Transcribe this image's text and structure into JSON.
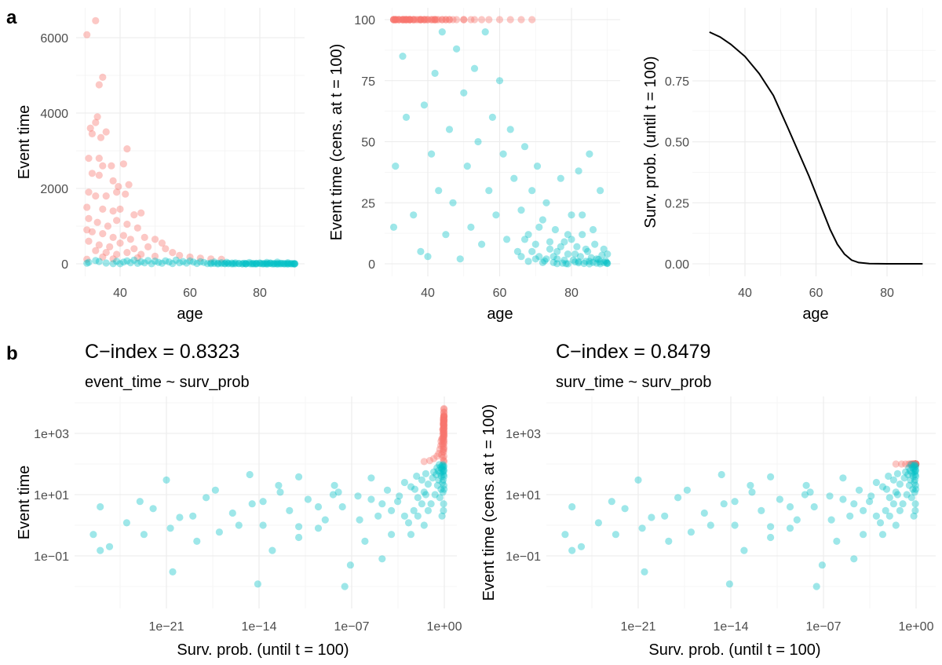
{
  "panel_tags": {
    "a": "a",
    "b": "b"
  },
  "chart_data": {
    "colors": {
      "censored_event_time_above_100": "#F8766D",
      "event_time_up_to_100": "#00BFC4",
      "curve": "#000000"
    },
    "observations": {
      "columns": [
        "age",
        "event_time",
        "surv_prob"
      ],
      "rows": [
        [
          30.5,
          6080,
          0.95
        ],
        [
          33,
          6450,
          0.94
        ],
        [
          34,
          4750,
          0.93
        ],
        [
          35,
          4950,
          0.93
        ],
        [
          33.5,
          3900,
          0.94
        ],
        [
          33,
          3750,
          0.94
        ],
        [
          31.5,
          3600,
          0.95
        ],
        [
          32,
          3450,
          0.94
        ],
        [
          36,
          3500,
          0.92
        ],
        [
          34.5,
          3350,
          0.93
        ],
        [
          42,
          3050,
          0.84
        ],
        [
          31,
          2800,
          0.95
        ],
        [
          34,
          2800,
          0.93
        ],
        [
          41,
          2650,
          0.85
        ],
        [
          35,
          2600,
          0.93
        ],
        [
          37.5,
          2600,
          0.9
        ],
        [
          32,
          2400,
          0.94
        ],
        [
          34,
          2350,
          0.93
        ],
        [
          38,
          2200,
          0.89
        ],
        [
          39.5,
          2050,
          0.87
        ],
        [
          42.5,
          2100,
          0.83
        ],
        [
          31,
          1900,
          0.95
        ],
        [
          33,
          1800,
          0.94
        ],
        [
          36,
          1800,
          0.92
        ],
        [
          39,
          1900,
          0.88
        ],
        [
          41.5,
          1850,
          0.85
        ],
        [
          30.5,
          1500,
          0.95
        ],
        [
          35,
          1450,
          0.93
        ],
        [
          38,
          1400,
          0.89
        ],
        [
          40,
          1450,
          0.86
        ],
        [
          44,
          1300,
          0.79
        ],
        [
          46,
          1350,
          0.76
        ],
        [
          31,
          1200,
          0.95
        ],
        [
          33.5,
          1100,
          0.94
        ],
        [
          36.5,
          1000,
          0.91
        ],
        [
          39,
          1150,
          0.88
        ],
        [
          42,
          1050,
          0.84
        ],
        [
          45,
          950,
          0.78
        ],
        [
          30.5,
          900,
          0.95
        ],
        [
          32,
          850,
          0.94
        ],
        [
          35,
          800,
          0.93
        ],
        [
          38,
          700,
          0.89
        ],
        [
          41,
          750,
          0.85
        ],
        [
          43,
          650,
          0.81
        ],
        [
          47,
          700,
          0.73
        ],
        [
          50,
          650,
          0.64
        ],
        [
          52,
          550,
          0.57
        ],
        [
          31,
          600,
          0.95
        ],
        [
          34,
          500,
          0.93
        ],
        [
          37,
          450,
          0.9
        ],
        [
          40,
          550,
          0.86
        ],
        [
          44,
          400,
          0.79
        ],
        [
          48,
          450,
          0.7
        ],
        [
          53,
          400,
          0.54
        ],
        [
          55,
          300,
          0.46
        ],
        [
          33,
          350,
          0.94
        ],
        [
          36,
          300,
          0.92
        ],
        [
          39,
          250,
          0.88
        ],
        [
          42,
          300,
          0.84
        ],
        [
          46,
          250,
          0.76
        ],
        [
          50,
          200,
          0.64
        ],
        [
          57,
          220,
          0.38
        ],
        [
          60,
          180,
          0.28
        ],
        [
          63,
          150,
          0.16
        ],
        [
          66,
          130,
          0.08
        ],
        [
          69,
          120,
          0.03
        ],
        [
          35,
          180,
          0.93
        ],
        [
          45,
          160,
          0.78
        ],
        [
          30.5,
          120,
          0.95
        ],
        [
          38,
          130,
          0.89
        ],
        [
          31,
          40,
          0.95
        ],
        [
          30.5,
          15,
          0.95
        ],
        [
          33,
          85,
          0.94
        ],
        [
          34,
          60,
          0.93
        ],
        [
          36,
          20,
          0.92
        ],
        [
          38,
          5,
          0.89
        ],
        [
          39,
          65,
          0.88
        ],
        [
          40,
          3,
          0.86
        ],
        [
          41,
          45,
          0.85
        ],
        [
          42,
          78,
          0.84
        ],
        [
          43,
          30,
          0.81
        ],
        [
          44,
          95,
          0.79
        ],
        [
          45,
          12,
          0.78
        ],
        [
          46,
          55,
          0.76
        ],
        [
          47,
          25,
          0.73
        ],
        [
          48,
          88,
          0.7
        ],
        [
          49,
          2,
          0.67
        ],
        [
          50,
          70,
          0.64
        ],
        [
          51,
          40,
          0.6
        ],
        [
          52,
          15,
          0.57
        ],
        [
          53,
          80,
          0.54
        ],
        [
          54,
          50,
          0.5
        ],
        [
          55,
          8,
          0.46
        ],
        [
          56,
          95,
          0.42
        ],
        [
          57,
          30,
          0.38
        ],
        [
          58,
          60,
          0.35
        ],
        [
          59,
          20,
          0.31
        ],
        [
          60,
          75,
          0.28
        ],
        [
          61,
          45,
          0.24
        ],
        [
          62,
          10,
          0.2
        ],
        [
          63,
          55,
          0.16
        ],
        [
          64,
          35,
          0.13
        ],
        [
          65,
          5,
          0.1
        ],
        [
          66,
          22,
          0.06
        ],
        [
          67,
          48,
          0.04
        ],
        [
          68,
          12,
          0.03
        ],
        [
          69,
          30,
          0.02
        ],
        [
          70,
          8,
          0.01
        ],
        [
          70.5,
          40,
          0.008
        ],
        [
          71,
          3,
          0.005
        ],
        [
          72,
          18,
          0.003
        ],
        [
          72.5,
          1.2,
          0.002
        ],
        [
          73,
          25,
          0.001
        ],
        [
          74,
          6,
          0.0003
        ],
        [
          75,
          0.5,
          0.0001
        ],
        [
          75.5,
          14,
          5e-05
        ],
        [
          76,
          2,
          1e-05
        ],
        [
          77,
          35,
          3e-06
        ],
        [
          77.5,
          0.3,
          1e-06
        ],
        [
          78,
          9,
          3e-07
        ],
        [
          78.5,
          0.05,
          8e-08
        ],
        [
          79,
          4,
          2e-08
        ],
        [
          80,
          20,
          5e-09
        ],
        [
          80.5,
          1.5,
          1e-09
        ],
        [
          81,
          0.8,
          3e-10
        ],
        [
          81.5,
          7,
          5e-11
        ],
        [
          82,
          0.4,
          1e-11
        ],
        [
          82.5,
          3,
          2e-12
        ],
        [
          83,
          12,
          4e-13
        ],
        [
          83.5,
          0.15,
          1e-13
        ],
        [
          84,
          1,
          2e-14
        ],
        [
          84.5,
          5,
          3e-15
        ],
        [
          85,
          0.012,
          8e-15
        ],
        [
          85.5,
          2.5,
          1e-16
        ],
        [
          86,
          0.6,
          1e-17
        ],
        [
          86.5,
          8,
          1e-18
        ],
        [
          87,
          0.3,
          2e-19
        ],
        [
          87.5,
          1.8,
          1e-20
        ],
        [
          88,
          0.03,
          3e-21
        ],
        [
          88.5,
          3.5,
          1e-22
        ],
        [
          89,
          0.5,
          2e-23
        ],
        [
          89.5,
          1.2,
          1e-24
        ],
        [
          90,
          4,
          1e-26
        ],
        [
          89.8,
          0.5,
          3e-27
        ],
        [
          89.9,
          0.15,
          1e-26
        ],
        [
          66,
          3,
          0.06
        ],
        [
          68,
          1,
          0.03
        ],
        [
          71,
          15,
          0.006
        ],
        [
          73,
          2,
          0.001
        ],
        [
          74,
          9,
          0.0004
        ],
        [
          76,
          5,
          2e-05
        ],
        [
          78,
          1.5,
          4e-07
        ],
        [
          79,
          12,
          1e-08
        ],
        [
          81,
          4,
          3e-10
        ],
        [
          82,
          0.9,
          1e-11
        ],
        [
          84,
          6,
          2e-14
        ],
        [
          85,
          1,
          3e-16
        ],
        [
          86,
          14,
          5e-18
        ],
        [
          87,
          2,
          1e-19
        ],
        [
          88,
          0.8,
          2e-21
        ],
        [
          89,
          6,
          1e-23
        ],
        [
          90,
          0.2,
          5e-26
        ],
        [
          83,
          20,
          3e-13
        ],
        [
          80,
          10,
          4e-09
        ],
        [
          77,
          7,
          3e-06
        ],
        [
          75,
          3,
          0.0001
        ],
        [
          72,
          0.5,
          0.003
        ],
        [
          70,
          2,
          0.01
        ],
        [
          69,
          5,
          0.02
        ],
        [
          67,
          10,
          0.04
        ],
        [
          85,
          45,
          2e-15
        ],
        [
          88,
          30,
          1e-21
        ],
        [
          82,
          38,
          1e-11
        ],
        [
          79,
          0.01,
          3e-08
        ],
        [
          76,
          0.08,
          2e-05
        ]
      ]
    },
    "panels": [
      {
        "id": "a1",
        "type": "scatter",
        "x": "age",
        "y": "event_time",
        "xlabel": "age",
        "ylabel": "Event time",
        "xlim": [
          30,
          90
        ],
        "ylim": [
          0,
          6450
        ],
        "xticks": [
          40,
          60,
          80
        ],
        "xtick_labels": [
          "40",
          "60",
          "80"
        ],
        "yticks": [
          0,
          2000,
          4000,
          6000
        ],
        "ytick_labels": [
          "0",
          "2000",
          "4000",
          "6000"
        ],
        "grid": true,
        "legend": "none"
      },
      {
        "id": "a2",
        "type": "scatter",
        "x": "age",
        "y": "event_time censored at 100",
        "xlabel": "age",
        "ylabel": "Event time (cens. at t = 100)",
        "xlim": [
          30,
          90
        ],
        "ylim": [
          0,
          100
        ],
        "xticks": [
          40,
          60,
          80
        ],
        "xtick_labels": [
          "40",
          "60",
          "80"
        ],
        "yticks": [
          0,
          25,
          50,
          75,
          100
        ],
        "ytick_labels": [
          "0",
          "25",
          "50",
          "75",
          "100"
        ],
        "grid": true,
        "legend": "none"
      },
      {
        "id": "a3",
        "type": "line",
        "xlabel": "age",
        "ylabel": "Surv. prob. (until t = 100)",
        "xlim": [
          30,
          90
        ],
        "ylim": [
          0,
          0.95
        ],
        "xticks": [
          40,
          60,
          80
        ],
        "xtick_labels": [
          "40",
          "60",
          "80"
        ],
        "yticks": [
          0,
          0.25,
          0.5,
          0.75
        ],
        "ytick_labels": [
          "0.00",
          "0.25",
          "0.50",
          "0.75"
        ],
        "curve": {
          "x": [
            30,
            33,
            36,
            40,
            44,
            48,
            52,
            55,
            58,
            61,
            64,
            66,
            68,
            70,
            72,
            75,
            80,
            85,
            90
          ],
          "y": [
            0.95,
            0.93,
            0.9,
            0.85,
            0.78,
            0.69,
            0.56,
            0.46,
            0.36,
            0.25,
            0.14,
            0.08,
            0.04,
            0.015,
            0.005,
            0.001,
            0,
            0,
            0
          ]
        },
        "grid": true,
        "legend": "none"
      },
      {
        "id": "b1",
        "type": "scatter",
        "x": "surv_prob",
        "y": "event_time",
        "title": "C−index = 0.8323",
        "subtitle": "event_time ~ surv_prob",
        "xlabel": "Surv. prob. (until t = 100)",
        "ylabel": "Event time",
        "xscale": "log10",
        "yscale": "log10",
        "xlim": [
          1e-27,
          1
        ],
        "ylim": [
          0.01,
          6450
        ],
        "xticks": [
          1e-21,
          1e-14,
          1e-07,
          1
        ],
        "xtick_labels": [
          "1e−21",
          "1e−14",
          "1e−07",
          "1e+00"
        ],
        "yticks": [
          1000,
          10,
          0.1
        ],
        "ytick_labels": [
          "1e+03",
          "1e+01",
          "1e−01"
        ],
        "grid": true,
        "legend": "none"
      },
      {
        "id": "b2",
        "type": "scatter",
        "x": "surv_prob",
        "y": "event_time censored at 100",
        "title": "C−index = 0.8479",
        "subtitle": "surv_time ~ surv_prob",
        "xlabel": "Surv. prob. (until t = 100)",
        "ylabel": "Event time (cens. at t = 100)",
        "xscale": "log10",
        "yscale": "log10",
        "xlim": [
          1e-27,
          1
        ],
        "ylim": [
          0.01,
          100
        ],
        "xticks": [
          1e-21,
          1e-14,
          1e-07,
          1
        ],
        "xtick_labels": [
          "1e−21",
          "1e−14",
          "1e−07",
          "1e+00"
        ],
        "yticks": [
          1000,
          10,
          0.1
        ],
        "ytick_labels": [
          "1e+03",
          "1e+01",
          "1e−01"
        ],
        "grid": true,
        "legend": "none"
      }
    ]
  }
}
